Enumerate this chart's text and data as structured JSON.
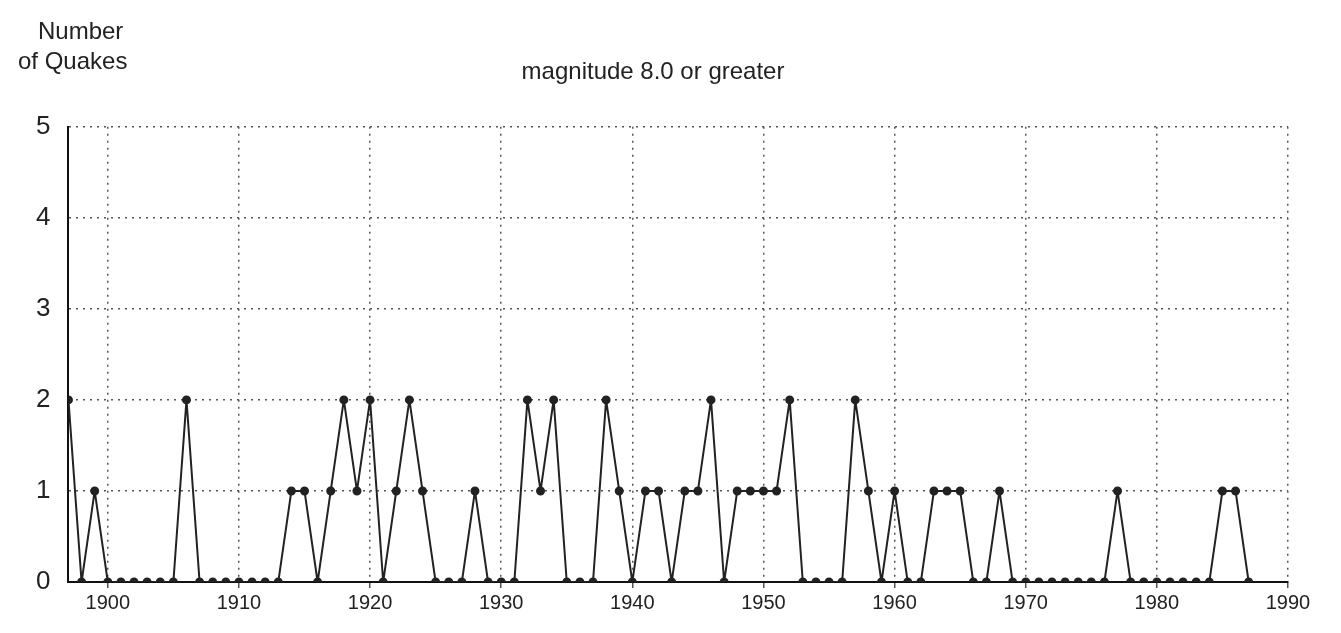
{
  "chart_data": {
    "type": "line",
    "title": "magnitude 8.0 or greater",
    "ylabel": "Number of Quakes",
    "x": [
      1897,
      1898,
      1899,
      1900,
      1901,
      1902,
      1903,
      1904,
      1905,
      1906,
      1907,
      1908,
      1909,
      1910,
      1911,
      1912,
      1913,
      1914,
      1915,
      1916,
      1917,
      1918,
      1919,
      1920,
      1921,
      1922,
      1923,
      1924,
      1925,
      1926,
      1927,
      1928,
      1929,
      1930,
      1931,
      1932,
      1933,
      1934,
      1935,
      1936,
      1937,
      1938,
      1939,
      1940,
      1941,
      1942,
      1943,
      1944,
      1945,
      1946,
      1947,
      1948,
      1949,
      1950,
      1951,
      1952,
      1953,
      1954,
      1955,
      1956,
      1957,
      1958,
      1959,
      1960,
      1961,
      1962,
      1963,
      1964,
      1965,
      1966,
      1967,
      1968,
      1969,
      1970,
      1971,
      1972,
      1973,
      1974,
      1975,
      1976,
      1977,
      1978,
      1979,
      1980,
      1981,
      1982,
      1983,
      1984,
      1985,
      1986,
      1987
    ],
    "series": [
      {
        "color": "#222222",
        "values": [
          2,
          0,
          1,
          0,
          0,
          0,
          0,
          0,
          0,
          2,
          0,
          0,
          0,
          0,
          0,
          0,
          0,
          1,
          1,
          0,
          1,
          2,
          1,
          2,
          0,
          1,
          2,
          1,
          0,
          0,
          0,
          1,
          0,
          0,
          0,
          2,
          1,
          2,
          0,
          0,
          0,
          2,
          1,
          0,
          1,
          1,
          0,
          1,
          1,
          2,
          0,
          1,
          1,
          1,
          1,
          2,
          0,
          0,
          0,
          0,
          2,
          1,
          0,
          1,
          0,
          0,
          1,
          1,
          1,
          0,
          0,
          1,
          0,
          0,
          0,
          0,
          0,
          0,
          0,
          0,
          1,
          0,
          0,
          0,
          0,
          0,
          0,
          0,
          1,
          1,
          0
        ]
      }
    ],
    "xlim": [
      1897,
      1990
    ],
    "xticks": [
      1900,
      1910,
      1920,
      1930,
      1940,
      1950,
      1960,
      1970,
      1980,
      1990
    ],
    "ylim": [
      0,
      5
    ],
    "yticks": [
      0,
      1,
      2,
      3,
      4,
      5
    ],
    "grid": true,
    "legend": false,
    "marker": "circle",
    "line_style": "solid"
  }
}
